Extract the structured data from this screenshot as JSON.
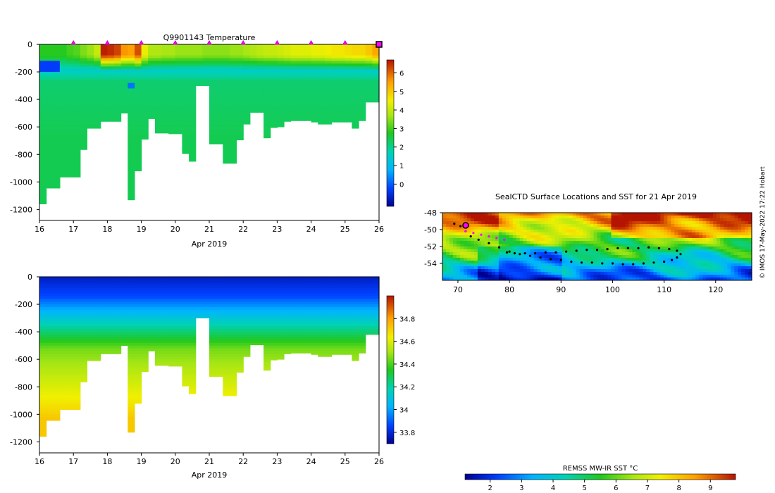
{
  "credit": "© IMOS 17-May-2022 17:22 Hobart",
  "chart_data": [
    {
      "type": "heatmap",
      "title": "Q9901143  Temperature",
      "xlabel": "Apr 2019",
      "ylabel": "",
      "xlim": [
        16,
        26
      ],
      "ylim": [
        -1280,
        0
      ],
      "x_ticks": [
        "16",
        "17",
        "18",
        "19",
        "20",
        "21",
        "22",
        "23",
        "24",
        "25",
        "26"
      ],
      "y_ticks": [
        "0",
        "-200",
        "-400",
        "-600",
        "-800",
        "-1000",
        "-1200"
      ],
      "colorbar": {
        "min": -1.2,
        "max": 6.7,
        "ticks": [
          "6",
          "5",
          "4",
          "3",
          "2",
          "1",
          "0"
        ]
      },
      "profile_markers_days": [
        17,
        18,
        19,
        20,
        21,
        22,
        23,
        24,
        25
      ],
      "current_marker_day": 26,
      "profile_days": [
        16.1,
        16.3,
        16.5,
        16.7,
        16.9,
        17.1,
        17.3,
        17.5,
        17.7,
        17.9,
        18.1,
        18.3,
        18.5,
        18.7,
        18.9,
        19.1,
        19.3,
        19.5,
        19.7,
        19.9,
        20.1,
        20.3,
        20.5,
        20.7,
        20.9,
        21.1,
        21.3,
        21.5,
        21.7,
        21.9,
        22.1,
        22.3,
        22.5,
        22.7,
        22.9,
        23.1,
        23.3,
        23.5,
        23.7,
        23.9,
        24.1,
        24.3,
        24.5,
        24.7,
        24.9,
        25.1,
        25.3,
        25.5,
        25.7,
        25.9
      ],
      "profile_depth_m": [
        -1160,
        -1045,
        -1045,
        -965,
        -965,
        -965,
        -765,
        -610,
        -610,
        -560,
        -560,
        -560,
        -500,
        -1130,
        -920,
        -690,
        -540,
        -645,
        -645,
        -650,
        -650,
        -795,
        -850,
        -300,
        -300,
        -725,
        -725,
        -865,
        -865,
        -695,
        -580,
        -495,
        -495,
        -680,
        -605,
        -600,
        -560,
        -555,
        -555,
        -555,
        -565,
        -580,
        -580,
        -565,
        -565,
        -565,
        -610,
        -555,
        -420,
        -420
      ],
      "surface_temp": [
        2.8,
        2.8,
        2.8,
        2.8,
        3.0,
        3.1,
        3.4,
        3.6,
        4.0,
        6.6,
        6.5,
        6.3,
        5.6,
        5.5,
        6.2,
        4.4,
        3.8,
        3.8,
        3.7,
        3.7,
        3.6,
        3.6,
        3.6,
        3.6,
        3.5,
        3.5,
        3.5,
        3.5,
        3.6,
        3.6,
        3.7,
        3.8,
        3.9,
        4.0,
        4.0,
        4.1,
        4.2,
        4.3,
        4.3,
        4.3,
        4.4,
        4.4,
        4.5,
        4.6,
        4.6,
        4.7,
        4.8,
        4.8,
        5.0,
        5.4
      ]
    },
    {
      "type": "heatmap",
      "title": "",
      "xlabel": "Apr 2019",
      "ylabel": "",
      "xlim": [
        16,
        26
      ],
      "ylim": [
        -1280,
        0
      ],
      "x_ticks": [
        "16",
        "17",
        "18",
        "19",
        "20",
        "21",
        "22",
        "23",
        "24",
        "25",
        "26"
      ],
      "y_ticks": [
        "0",
        "-200",
        "-400",
        "-600",
        "-800",
        "-1000",
        "-1200"
      ],
      "colorbar": {
        "min": 33.7,
        "max": 35.0,
        "ticks": [
          "34.8",
          "34.6",
          "34.4",
          "34.2",
          "34",
          "33.8"
        ]
      },
      "profile_days": [
        16.1,
        16.3,
        16.5,
        16.7,
        16.9,
        17.1,
        17.3,
        17.5,
        17.7,
        17.9,
        18.1,
        18.3,
        18.5,
        18.7,
        18.9,
        19.1,
        19.3,
        19.5,
        19.7,
        19.9,
        20.1,
        20.3,
        20.5,
        20.7,
        20.9,
        21.1,
        21.3,
        21.5,
        21.7,
        21.9,
        22.1,
        22.3,
        22.5,
        22.7,
        22.9,
        23.1,
        23.3,
        23.5,
        23.7,
        23.9,
        24.1,
        24.3,
        24.5,
        24.7,
        24.9,
        25.1,
        25.3,
        25.5,
        25.7,
        25.9
      ],
      "profile_depth_m": [
        -1160,
        -1045,
        -1045,
        -965,
        -965,
        -965,
        -765,
        -610,
        -610,
        -560,
        -560,
        -560,
        -500,
        -1130,
        -920,
        -690,
        -540,
        -645,
        -645,
        -650,
        -650,
        -795,
        -850,
        -300,
        -300,
        -725,
        -725,
        -865,
        -865,
        -695,
        -580,
        -495,
        -495,
        -680,
        -605,
        -600,
        -560,
        -555,
        -555,
        -555,
        -565,
        -580,
        -580,
        -565,
        -565,
        -565,
        -610,
        -555,
        -420,
        -420
      ]
    },
    {
      "type": "heatmap",
      "title": "SealCTD Surface Locations and SST for 21 Apr 2019",
      "xlabel": "",
      "ylabel": "",
      "xlim": [
        67,
        127
      ],
      "ylim": [
        -56,
        -48
      ],
      "x_ticks": [
        "70",
        "80",
        "90",
        "100",
        "110",
        "120"
      ],
      "y_ticks": [
        "-48",
        "-50",
        "-52",
        "-54"
      ],
      "track_lon": [
        69.3,
        70.5,
        71.5,
        72.5,
        74,
        76,
        78,
        80,
        82,
        84,
        86,
        88,
        90,
        92,
        94,
        96,
        98,
        100,
        102,
        104,
        106,
        108,
        110,
        111.5,
        112.5,
        113.2,
        112.5,
        111,
        109,
        107,
        105,
        103,
        101,
        99,
        97,
        95,
        93,
        91,
        89,
        87,
        85,
        83,
        81,
        79.5
      ],
      "track_lat": [
        -49.3,
        -49.6,
        -50.2,
        -50.8,
        -51.2,
        -51.6,
        -52.1,
        -52.6,
        -52.9,
        -53.1,
        -53.3,
        -53.5,
        -53.6,
        -53.8,
        -53.9,
        -53.9,
        -54.0,
        -54.0,
        -54.1,
        -54.1,
        -54.0,
        -53.9,
        -53.8,
        -53.6,
        -53.3,
        -52.9,
        -52.5,
        -52.3,
        -52.2,
        -52.1,
        -52.2,
        -52.2,
        -52.2,
        -52.3,
        -52.4,
        -52.4,
        -52.5,
        -52.6,
        -52.7,
        -52.7,
        -52.8,
        -52.8,
        -52.8,
        -52.7
      ],
      "magenta_lon": [
        71.5,
        73,
        74.5,
        76,
        77.5,
        79
      ],
      "magenta_lat": [
        -50.2,
        -50.4,
        -50.6,
        -50.8,
        -51.0,
        -51.2
      ],
      "current_position": {
        "lon": 71.5,
        "lat": -49.5
      },
      "colorbar": {
        "label": "REMSS MW-IR SST °C",
        "min": 1.2,
        "max": 9.8,
        "ticks": [
          "2",
          "3",
          "4",
          "5",
          "6",
          "7",
          "8",
          "9"
        ]
      }
    }
  ]
}
